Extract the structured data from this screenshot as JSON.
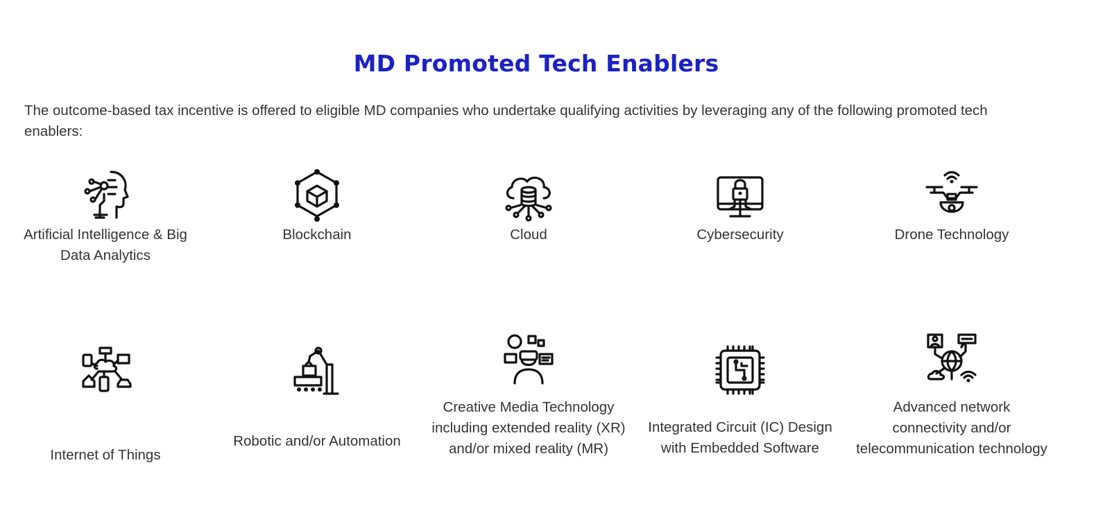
{
  "page": {
    "title": "MD Promoted Tech Enablers",
    "intro": "The outcome-based tax incentive is offered to eligible MD companies who undertake qualifying activities by leveraging any of the following promoted tech enablers:",
    "accent_color": "#1a22c4"
  },
  "enablers": [
    {
      "label": "Artificial Intelligence & Big Data Analytics",
      "icon": "ai-head-icon"
    },
    {
      "label": "Blockchain",
      "icon": "blockchain-cube-icon"
    },
    {
      "label": "Cloud",
      "icon": "cloud-database-icon"
    },
    {
      "label": "Cybersecurity",
      "icon": "monitor-lock-icon"
    },
    {
      "label": "Drone Technology",
      "icon": "drone-icon"
    },
    {
      "label": "Internet of Things",
      "icon": "iot-network-icon"
    },
    {
      "label": "Robotic and/or Automation",
      "icon": "robotic-arm-icon"
    },
    {
      "label": "Creative Media Technology including extended reality (XR) and/or mixed reality (MR)",
      "icon": "vr-headset-person-icon"
    },
    {
      "label": "Integrated Circuit (IC) Design with Embedded Software",
      "icon": "microchip-icon"
    },
    {
      "label": "Advanced network connectivity and/or telecommunication technology",
      "icon": "network-globe-icon"
    }
  ]
}
